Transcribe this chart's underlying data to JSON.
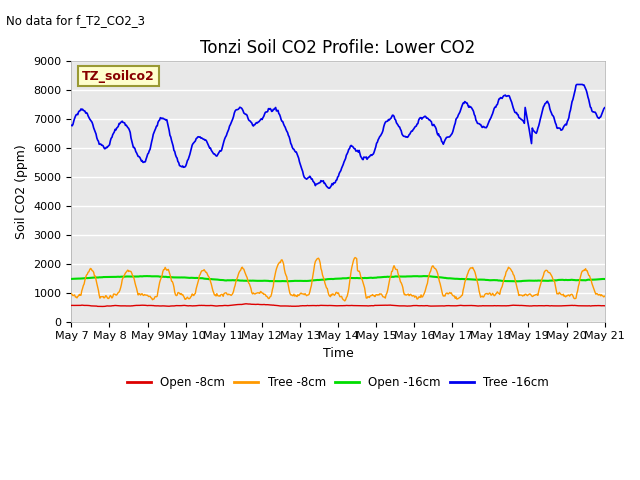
{
  "title": "Tonzi Soil CO2 Profile: Lower CO2",
  "subtitle": "No data for f_T2_CO2_3",
  "ylabel": "Soil CO2 (ppm)",
  "xlabel": "Time",
  "legend_label": "TZ_soilco2",
  "ylim": [
    0,
    9000
  ],
  "yticks": [
    0,
    1000,
    2000,
    3000,
    4000,
    5000,
    6000,
    7000,
    8000,
    9000
  ],
  "xtick_labels": [
    "May 7",
    "May 8",
    "May 9",
    "May 10",
    "May 11",
    "May 12",
    "May 13",
    "May 14",
    "May 15",
    "May 16",
    "May 17",
    "May 18",
    "May 19",
    "May 20",
    "May 21"
  ],
  "series_colors": {
    "open_8cm": "#dd0000",
    "tree_8cm": "#ff9900",
    "open_16cm": "#00dd00",
    "tree_16cm": "#0000ee"
  },
  "series_labels": {
    "open_8cm": "Open -8cm",
    "tree_8cm": "Tree -8cm",
    "open_16cm": "Open -16cm",
    "tree_16cm": "Tree -16cm"
  },
  "bg_color": "#ffffff",
  "plot_bg_color": "#e8e8e8",
  "grid_color": "#ffffff",
  "title_fontsize": 12,
  "label_fontsize": 9,
  "tick_fontsize": 8,
  "legend_box_color": "#ffffcc",
  "legend_box_edge": "#999933",
  "legend_text_color": "#880000"
}
